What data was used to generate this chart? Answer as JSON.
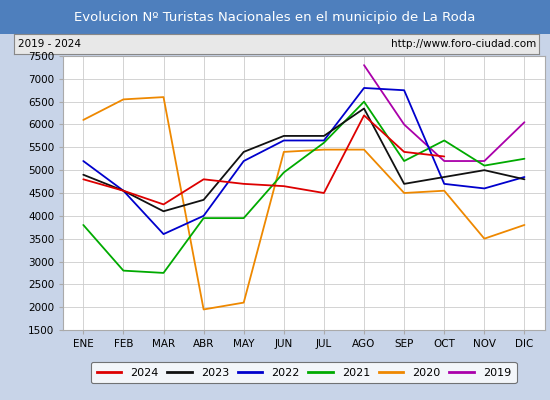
{
  "title": "Evolucion Nº Turistas Nacionales en el municipio de La Roda",
  "subtitle_left": "2019 - 2024",
  "subtitle_right": "http://www.foro-ciudad.com",
  "title_bg": "#4e7fbd",
  "title_color": "white",
  "months": [
    "ENE",
    "FEB",
    "MAR",
    "ABR",
    "MAY",
    "JUN",
    "JUL",
    "AGO",
    "SEP",
    "OCT",
    "NOV",
    "DIC"
  ],
  "ylim": [
    1500,
    7500
  ],
  "yticks": [
    1500,
    2000,
    2500,
    3000,
    3500,
    4000,
    4500,
    5000,
    5500,
    6000,
    6500,
    7000,
    7500
  ],
  "series": {
    "2024": {
      "color": "#dd0000",
      "data": [
        4800,
        4550,
        4250,
        4800,
        4700,
        4650,
        4500,
        6200,
        5400,
        5300,
        null,
        null
      ]
    },
    "2023": {
      "color": "#111111",
      "data": [
        4900,
        4550,
        4100,
        4350,
        5400,
        5750,
        5750,
        6350,
        4700,
        4850,
        5000,
        4800
      ]
    },
    "2022": {
      "color": "#0000cc",
      "data": [
        5200,
        4550,
        3600,
        4000,
        5200,
        5650,
        5650,
        6800,
        6750,
        4700,
        4600,
        4850
      ]
    },
    "2021": {
      "color": "#00aa00",
      "data": [
        3800,
        2800,
        2750,
        3950,
        3950,
        4950,
        5600,
        6500,
        5200,
        5650,
        5100,
        5250
      ]
    },
    "2020": {
      "color": "#ee8800",
      "data": [
        6100,
        6550,
        6600,
        1950,
        2100,
        5400,
        5450,
        5450,
        4500,
        4550,
        3500,
        3800
      ]
    },
    "2019": {
      "color": "#aa00aa",
      "data": [
        null,
        null,
        null,
        null,
        null,
        null,
        null,
        7300,
        6000,
        5200,
        5200,
        6050
      ]
    }
  },
  "legend_order": [
    "2024",
    "2023",
    "2022",
    "2021",
    "2020",
    "2019"
  ],
  "grid_color": "#cccccc",
  "plot_bg": "white",
  "fig_bg": "#c8d4e8",
  "subtitle_bg": "#e8e8e8"
}
